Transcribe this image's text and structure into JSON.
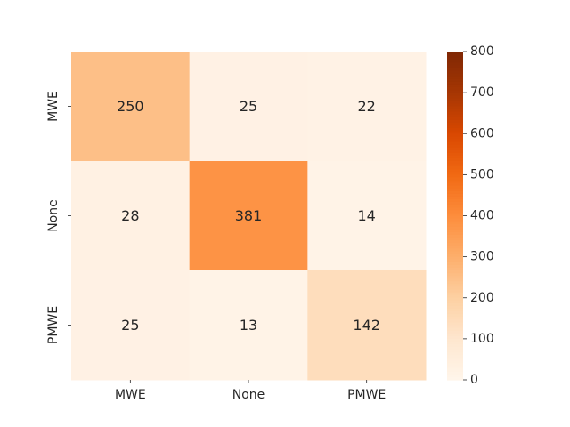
{
  "chart_data": {
    "type": "heatmap",
    "title": "",
    "xlabel": "",
    "ylabel": "",
    "x_categories": [
      "MWE",
      "None",
      "PMWE"
    ],
    "y_categories": [
      "MWE",
      "None",
      "PMWE"
    ],
    "values": [
      [
        250,
        25,
        22
      ],
      [
        28,
        381,
        14
      ],
      [
        25,
        13,
        142
      ]
    ],
    "colorbar": {
      "min": 0,
      "max": 800,
      "ticks": [
        0,
        100,
        200,
        300,
        400,
        500,
        600,
        700,
        800
      ],
      "colormap": "Oranges"
    },
    "grid": false,
    "colors": {
      "scale": [
        "#fff5eb",
        "#fee6ce",
        "#fdd0a2",
        "#fdae6b",
        "#fd8d3c",
        "#f16913",
        "#d94801",
        "#a63603",
        "#7f2704"
      ],
      "dark_text": "#262626",
      "light_text": "#ffffff"
    }
  }
}
